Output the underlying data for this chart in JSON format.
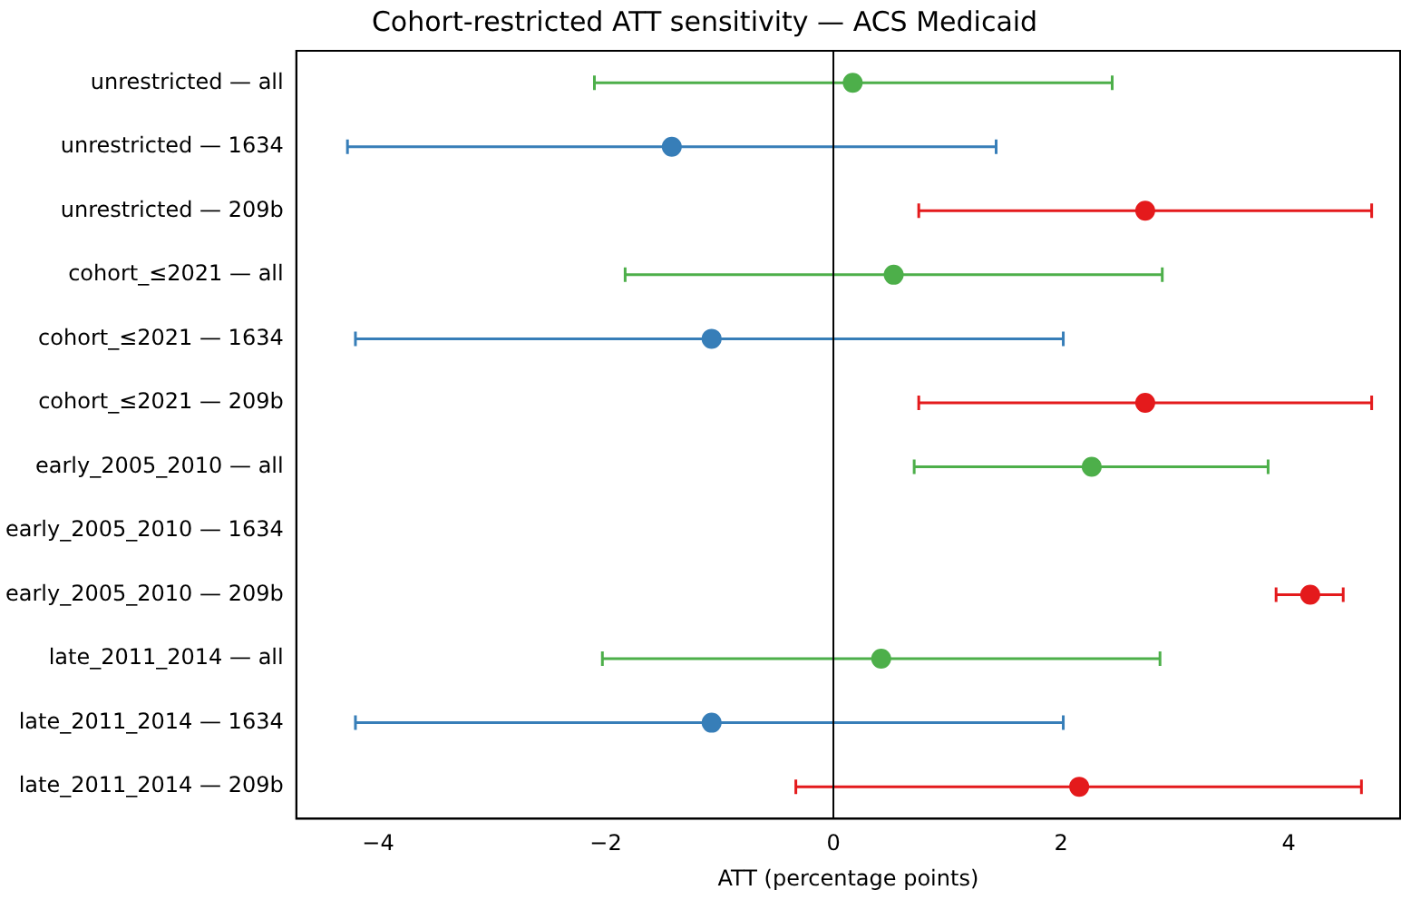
{
  "chart_data": {
    "type": "scatter",
    "orientation": "horizontal",
    "title": "Cohort-restricted ATT sensitivity — ACS Medicaid",
    "xlabel": "ATT (percentage points)",
    "categories": [
      "unrestricted — all",
      "unrestricted — 1634",
      "unrestricted — 209b",
      "cohort_≤2021 — all",
      "cohort_≤2021 — 1634",
      "cohort_≤2021 — 209b",
      "early_2005_2010 — all",
      "early_2005_2010 — 1634",
      "early_2005_2010 — 209b",
      "late_2011_2014 — all",
      "late_2011_2014 — 1634",
      "late_2011_2014 — 209b"
    ],
    "values": [
      0.17,
      -1.42,
      2.74,
      0.53,
      -1.07,
      2.74,
      2.27,
      null,
      4.19,
      0.42,
      -1.07,
      2.16
    ],
    "errors": [
      [
        -2.1,
        2.45
      ],
      [
        -4.27,
        1.43
      ],
      [
        0.75,
        4.73
      ],
      [
        -1.83,
        2.89
      ],
      [
        -4.2,
        2.02
      ],
      [
        0.75,
        4.73
      ],
      [
        0.71,
        3.82
      ],
      null,
      [
        3.89,
        4.48
      ],
      [
        -2.03,
        2.87
      ],
      [
        -4.2,
        2.02
      ],
      [
        -0.33,
        4.64
      ]
    ],
    "colors": [
      "#4daf4a",
      "#377eb8",
      "#e41a1c",
      "#4daf4a",
      "#377eb8",
      "#e41a1c",
      "#4daf4a",
      "#377eb8",
      "#e41a1c",
      "#4daf4a",
      "#377eb8",
      "#e41a1c"
    ],
    "xlim": [
      -4.72,
      4.98
    ],
    "xticks": [
      -4,
      -2,
      0,
      2,
      4
    ],
    "ref_lines": [
      {
        "axis": "x",
        "value": 0,
        "color": "#000000"
      }
    ],
    "marker": "circle",
    "grid": false,
    "legend": false
  }
}
